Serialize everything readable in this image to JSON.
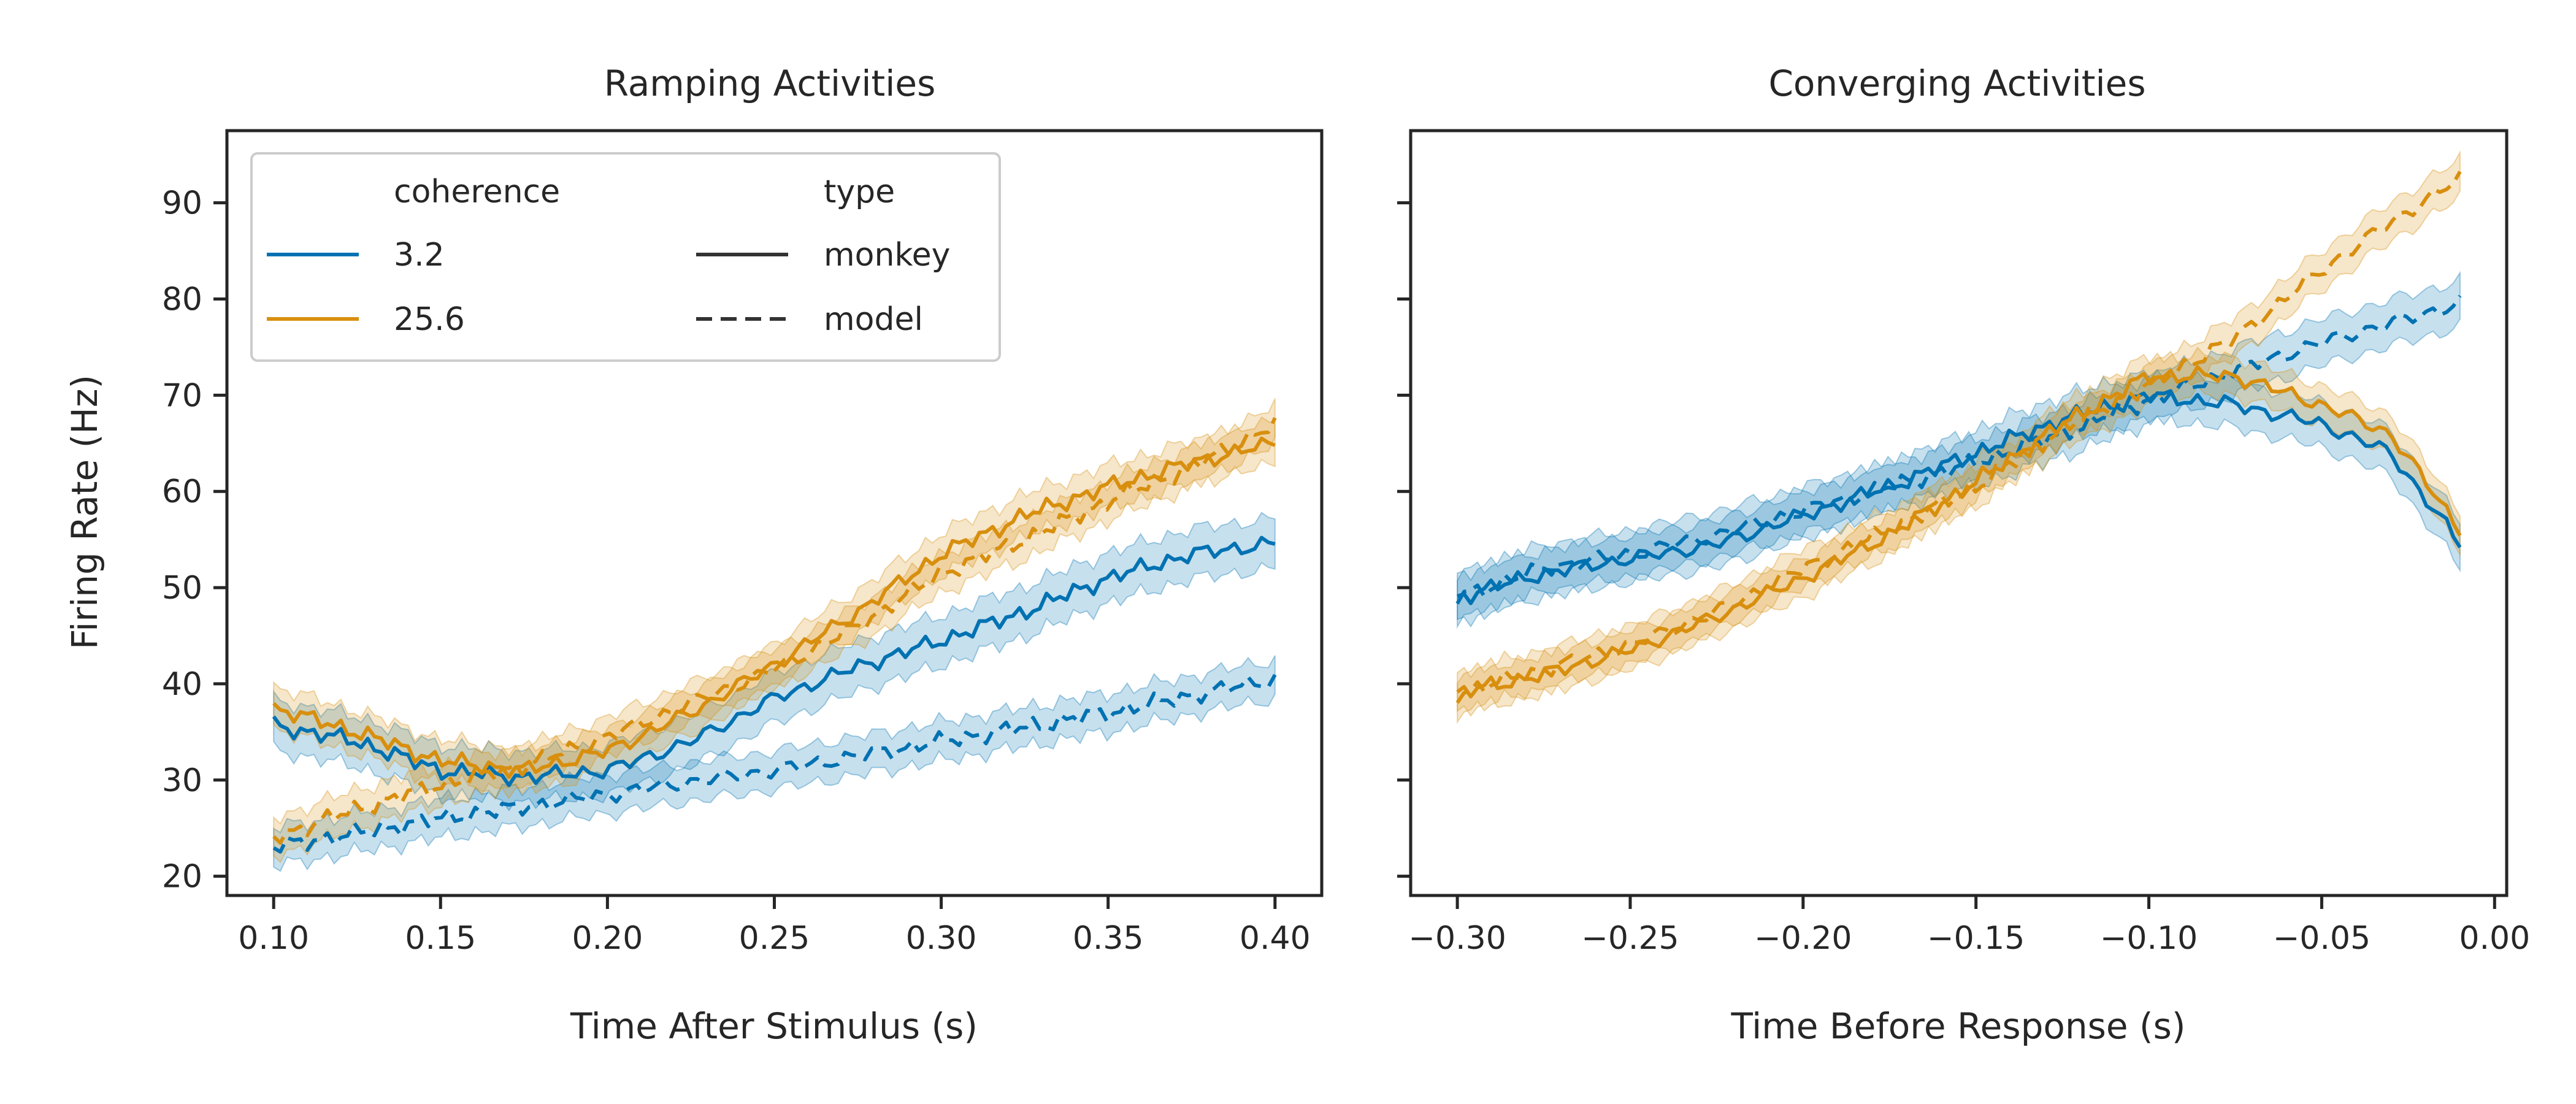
{
  "colors": {
    "c32": "#0072b2",
    "c256": "#d88f0e",
    "axis": "#262626",
    "legend_line": "#333333"
  },
  "chart_data": [
    {
      "type": "line",
      "title": "Ramping Activities",
      "xlabel": "Time After Stimulus (s)",
      "ylabel": "Firing Rate (Hz)",
      "xlim": [
        0.086,
        0.414
      ],
      "ylim": [
        18,
        97.5
      ],
      "xticks": [
        0.1,
        0.15,
        0.2,
        0.25,
        0.3,
        0.35,
        0.4
      ],
      "xtick_labels": [
        "0.10",
        "0.15",
        "0.20",
        "0.25",
        "0.30",
        "0.35",
        "0.40"
      ],
      "yticks": [
        20,
        30,
        40,
        50,
        60,
        70,
        80,
        90
      ],
      "ytick_labels": [
        "20",
        "30",
        "40",
        "50",
        "60",
        "70",
        "80",
        "90"
      ],
      "grid": false,
      "legend": {
        "placement": "top-left",
        "coherence_title": "coherence",
        "coherence_items": [
          "3.2",
          "25.6"
        ],
        "type_title": "type",
        "type_items": [
          "monkey",
          "model"
        ]
      },
      "series": [
        {
          "coherence": "3.2",
          "type": "monkey",
          "ci": 2.6,
          "x": [
            0.1,
            0.125,
            0.15,
            0.175,
            0.2,
            0.225,
            0.25,
            0.275,
            0.3,
            0.325,
            0.35,
            0.375,
            0.4
          ],
          "y": [
            35.7,
            34.0,
            31.0,
            30.3,
            31.0,
            34.0,
            38.5,
            41.8,
            44.5,
            47.5,
            51.0,
            53.5,
            54.6
          ]
        },
        {
          "coherence": "3.2",
          "type": "model",
          "ci": 2.0,
          "x": [
            0.1,
            0.125,
            0.15,
            0.175,
            0.2,
            0.225,
            0.25,
            0.275,
            0.3,
            0.325,
            0.35,
            0.375,
            0.4
          ],
          "y": [
            23.0,
            24.5,
            26.0,
            27.2,
            28.5,
            29.8,
            31.0,
            32.5,
            34.0,
            35.5,
            37.0,
            38.8,
            40.5
          ]
        },
        {
          "coherence": "25.6",
          "type": "monkey",
          "ci": 2.2,
          "x": [
            0.1,
            0.125,
            0.15,
            0.175,
            0.2,
            0.225,
            0.25,
            0.275,
            0.3,
            0.325,
            0.35,
            0.375,
            0.4
          ],
          "y": [
            37.5,
            35.0,
            32.0,
            31.0,
            33.0,
            37.0,
            42.0,
            47.5,
            53.5,
            57.5,
            60.5,
            63.0,
            65.0
          ]
        },
        {
          "coherence": "25.6",
          "type": "model",
          "ci": 2.0,
          "x": [
            0.1,
            0.125,
            0.15,
            0.175,
            0.2,
            0.225,
            0.25,
            0.275,
            0.3,
            0.325,
            0.35,
            0.375,
            0.4
          ],
          "y": [
            24.0,
            27.0,
            29.5,
            31.5,
            34.5,
            38.0,
            41.5,
            46.0,
            51.5,
            55.0,
            59.0,
            62.5,
            67.0
          ]
        }
      ]
    },
    {
      "type": "line",
      "title": "Converging Activities",
      "xlabel": "Time Before Response (s)",
      "ylabel": "",
      "xlim": [
        -0.3135,
        0.0035
      ],
      "ylim": [
        18,
        97.5
      ],
      "xticks": [
        -0.3,
        -0.25,
        -0.2,
        -0.15,
        -0.1,
        -0.05,
        0.0
      ],
      "xtick_labels": [
        "−0.30",
        "−0.25",
        "−0.20",
        "−0.15",
        "−0.10",
        "−0.05",
        "0.00"
      ],
      "yticks": [
        20,
        30,
        40,
        50,
        60,
        70,
        80,
        90
      ],
      "ytick_labels": [],
      "grid": false,
      "series": [
        {
          "coherence": "3.2",
          "type": "monkey",
          "ci": 2.4,
          "x": [
            -0.3,
            -0.275,
            -0.25,
            -0.225,
            -0.2,
            -0.175,
            -0.15,
            -0.125,
            -0.1,
            -0.075,
            -0.05,
            -0.03,
            -0.01
          ],
          "y": [
            49.0,
            51.5,
            53.0,
            54.5,
            57.5,
            60.5,
            64.0,
            67.5,
            70.0,
            69.0,
            67.0,
            64.0,
            54.5
          ]
        },
        {
          "coherence": "3.2",
          "type": "model",
          "ci": 2.4,
          "x": [
            -0.3,
            -0.275,
            -0.25,
            -0.225,
            -0.2,
            -0.175,
            -0.15,
            -0.125,
            -0.1,
            -0.075,
            -0.05,
            -0.03,
            -0.01
          ],
          "y": [
            49.0,
            52.0,
            53.5,
            55.5,
            58.0,
            60.5,
            63.0,
            66.0,
            69.5,
            72.5,
            75.5,
            77.5,
            79.5
          ]
        },
        {
          "coherence": "25.6",
          "type": "monkey",
          "ci": 2.0,
          "x": [
            -0.3,
            -0.275,
            -0.25,
            -0.225,
            -0.2,
            -0.175,
            -0.15,
            -0.125,
            -0.1,
            -0.075,
            -0.05,
            -0.03,
            -0.01
          ],
          "y": [
            39.0,
            41.0,
            43.5,
            47.0,
            51.0,
            55.5,
            61.0,
            67.0,
            72.0,
            72.0,
            69.0,
            66.0,
            56.0
          ]
        },
        {
          "coherence": "25.6",
          "type": "model",
          "ci": 2.0,
          "x": [
            -0.3,
            -0.275,
            -0.25,
            -0.225,
            -0.2,
            -0.175,
            -0.15,
            -0.125,
            -0.1,
            -0.075,
            -0.05,
            -0.03,
            -0.01
          ],
          "y": [
            39.0,
            41.5,
            44.0,
            47.5,
            52.0,
            56.0,
            60.5,
            66.5,
            71.0,
            76.0,
            83.0,
            88.0,
            92.5
          ]
        }
      ]
    }
  ]
}
